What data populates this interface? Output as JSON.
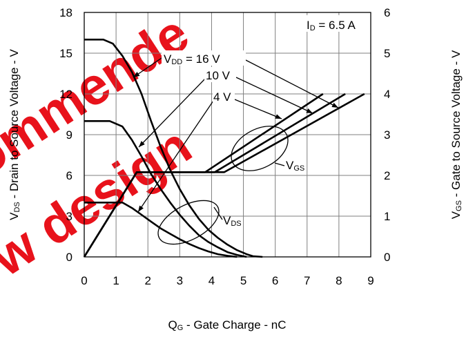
{
  "chart_data": {
    "type": "line",
    "xlabel": {
      "main": "Q",
      "sub": "G",
      "rest": " - Gate Charge - nC"
    },
    "ylabel_left": {
      "main": "V",
      "sub": "DS",
      "rest": " - Drain to Source Voltage - V"
    },
    "ylabel_right": {
      "main": "V",
      "sub": "GS",
      "rest": " - Gate to Source Voltage - V"
    },
    "xlim": [
      0,
      9
    ],
    "ylim_left": [
      0,
      18
    ],
    "ylim_right": [
      0,
      6
    ],
    "x_ticks": [
      "0",
      "1",
      "2",
      "3",
      "4",
      "5",
      "6",
      "7",
      "8",
      "9"
    ],
    "y_left_ticks": [
      "0",
      "3",
      "6",
      "9",
      "12",
      "15",
      "18"
    ],
    "y_right_ticks": [
      "0",
      "1",
      "2",
      "3",
      "4",
      "5",
      "6"
    ],
    "grid": true,
    "annotations": {
      "id_label": {
        "main": "I",
        "sub": "D",
        "rest": " = 6.5 A"
      },
      "vdd16": {
        "main": "V",
        "sub": "DD",
        "rest": " = 16 V"
      },
      "vdd10": "10 V",
      "vdd4": "4 V",
      "vgs_group": {
        "main": "V",
        "sub": "GS"
      },
      "vds_group": {
        "main": "V",
        "sub": "DS"
      }
    },
    "watermark": "recommended new design",
    "series": [
      {
        "axis": "left",
        "values": [
          [
            0,
            16
          ],
          [
            0.6,
            16
          ],
          [
            0.9,
            15.7
          ],
          [
            1.2,
            14.8
          ],
          [
            1.5,
            13.6
          ],
          [
            1.8,
            12.0
          ],
          [
            2.1,
            10.0
          ],
          [
            2.4,
            8.1
          ],
          [
            2.7,
            6.4
          ],
          [
            3.0,
            5.0
          ],
          [
            3.3,
            3.8
          ],
          [
            3.6,
            2.8
          ],
          [
            3.9,
            2.0
          ],
          [
            4.2,
            1.4
          ],
          [
            4.5,
            0.9
          ],
          [
            4.8,
            0.5
          ],
          [
            5.1,
            0.2
          ],
          [
            5.3,
            0.05
          ],
          [
            5.6,
            0
          ]
        ]
      },
      {
        "axis": "left",
        "values": [
          [
            0,
            10
          ],
          [
            0.8,
            10
          ],
          [
            1.2,
            9.6
          ],
          [
            1.5,
            8.6
          ],
          [
            1.8,
            7.4
          ],
          [
            2.1,
            6.1
          ],
          [
            2.4,
            5.0
          ],
          [
            2.7,
            4.0
          ],
          [
            3.0,
            3.1
          ],
          [
            3.3,
            2.3
          ],
          [
            3.6,
            1.6
          ],
          [
            3.9,
            1.1
          ],
          [
            4.2,
            0.7
          ],
          [
            4.5,
            0.35
          ],
          [
            4.8,
            0.15
          ],
          [
            5.1,
            0
          ]
        ]
      },
      {
        "axis": "left",
        "values": [
          [
            0,
            4
          ],
          [
            1.2,
            4
          ],
          [
            1.5,
            3.6
          ],
          [
            1.8,
            3.1
          ],
          [
            2.1,
            2.6
          ],
          [
            2.4,
            2.1
          ],
          [
            2.7,
            1.7
          ],
          [
            3.0,
            1.3
          ],
          [
            3.3,
            0.95
          ],
          [
            3.6,
            0.65
          ],
          [
            3.9,
            0.4
          ],
          [
            4.2,
            0.2
          ],
          [
            4.5,
            0.08
          ],
          [
            4.8,
            0
          ]
        ]
      },
      {
        "axis": "right",
        "values": [
          [
            0,
            0
          ],
          [
            1.65,
            2.08
          ],
          [
            3.8,
            2.08
          ],
          [
            7.5,
            4
          ]
        ]
      },
      {
        "axis": "right",
        "values": [
          [
            0,
            0
          ],
          [
            1.65,
            2.08
          ],
          [
            4.1,
            2.08
          ],
          [
            8.2,
            4
          ]
        ]
      },
      {
        "axis": "right",
        "values": [
          [
            0,
            0
          ],
          [
            1.65,
            2.08
          ],
          [
            4.4,
            2.08
          ],
          [
            8.8,
            4
          ]
        ]
      }
    ]
  }
}
